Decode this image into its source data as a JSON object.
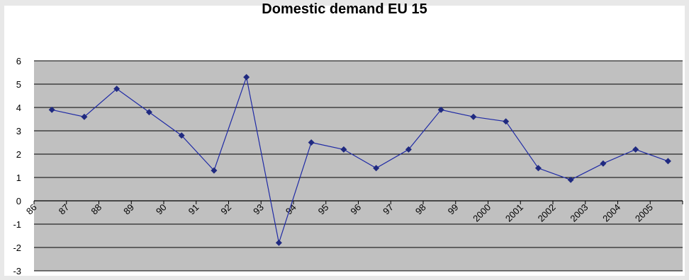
{
  "chart_data": {
    "type": "line",
    "title": "Domestic demand EU 15",
    "xlabel": "",
    "ylabel": "",
    "categories": [
      "86",
      "87",
      "88",
      "89",
      "90",
      "91",
      "92",
      "93",
      "94",
      "95",
      "96",
      "97",
      "98",
      "99",
      "2000",
      "2001",
      "2002",
      "2003",
      "2004",
      "2005"
    ],
    "series": [
      {
        "values": [
          3.9,
          3.6,
          4.8,
          3.8,
          2.8,
          1.3,
          5.3,
          -1.8,
          2.5,
          2.2,
          1.4,
          2.2,
          3.9,
          3.6,
          3.4,
          1.4,
          0.9,
          1.6,
          2.2,
          1.7
        ]
      }
    ],
    "ylim": [
      -3,
      6
    ],
    "yticks": [
      -3,
      -2,
      -1,
      0,
      1,
      2,
      3,
      4,
      5,
      6
    ],
    "grid": true,
    "colors": {
      "plot_background": "#c0c0c0",
      "series_line": "#1f2aa5",
      "marker": "#202a80",
      "gridline": "#000000"
    }
  }
}
